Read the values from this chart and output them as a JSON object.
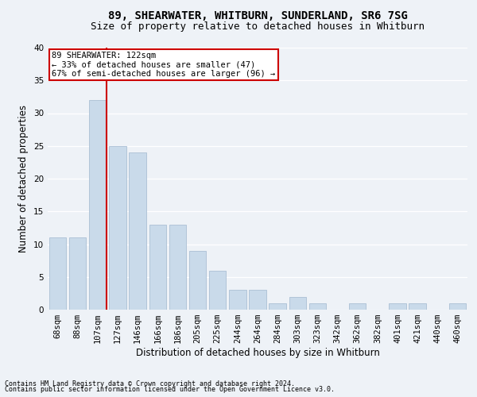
{
  "title1": "89, SHEARWATER, WHITBURN, SUNDERLAND, SR6 7SG",
  "title2": "Size of property relative to detached houses in Whitburn",
  "xlabel": "Distribution of detached houses by size in Whitburn",
  "ylabel": "Number of detached properties",
  "footnote1": "Contains HM Land Registry data © Crown copyright and database right 2024.",
  "footnote2": "Contains public sector information licensed under the Open Government Licence v3.0.",
  "categories": [
    "68sqm",
    "88sqm",
    "107sqm",
    "127sqm",
    "146sqm",
    "166sqm",
    "186sqm",
    "205sqm",
    "225sqm",
    "244sqm",
    "264sqm",
    "284sqm",
    "303sqm",
    "323sqm",
    "342sqm",
    "362sqm",
    "382sqm",
    "401sqm",
    "421sqm",
    "440sqm",
    "460sqm"
  ],
  "values": [
    11,
    11,
    32,
    25,
    24,
    13,
    13,
    9,
    6,
    3,
    3,
    1,
    2,
    1,
    0,
    1,
    0,
    1,
    1,
    0,
    1
  ],
  "bar_color": "#c9daea",
  "bar_edge_color": "#aabfd4",
  "vline_color": "#cc0000",
  "annotation_text": "89 SHEARWATER: 122sqm\n← 33% of detached houses are smaller (47)\n67% of semi-detached houses are larger (96) →",
  "annotation_box_facecolor": "#ffffff",
  "annotation_box_edge": "#cc0000",
  "ylim": [
    0,
    40
  ],
  "yticks": [
    0,
    5,
    10,
    15,
    20,
    25,
    30,
    35,
    40
  ],
  "background_color": "#eef2f7",
  "grid_color": "#ffffff",
  "title_fontsize": 10,
  "subtitle_fontsize": 9,
  "axis_label_fontsize": 8.5,
  "tick_fontsize": 7.5,
  "annotation_fontsize": 7.5,
  "footnote_fontsize": 6,
  "bar_width": 0.85
}
